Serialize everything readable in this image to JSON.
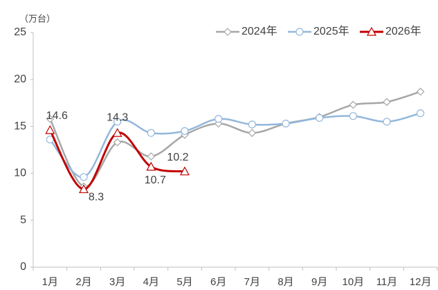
{
  "chart_data": {
    "type": "line",
    "unit_label": "（万台）",
    "categories": [
      "1月",
      "2月",
      "3月",
      "4月",
      "5月",
      "6月",
      "7月",
      "8月",
      "9月",
      "10月",
      "11月",
      "12月"
    ],
    "series": [
      {
        "name": "2024年",
        "color": "#a6a6a6",
        "marker": "diamond",
        "values": [
          15.8,
          8.6,
          13.3,
          11.8,
          14.1,
          15.3,
          14.3,
          15.3,
          16.0,
          17.3,
          17.6,
          18.7
        ]
      },
      {
        "name": "2025年",
        "color": "#92b7dc",
        "marker": "circle",
        "values": [
          13.6,
          9.6,
          15.5,
          14.3,
          14.5,
          15.8,
          15.2,
          15.3,
          15.9,
          16.1,
          15.5,
          16.4
        ]
      },
      {
        "name": "2026年",
        "color": "#c00000",
        "marker": "triangle",
        "values": [
          14.6,
          8.3,
          14.3,
          10.7,
          10.2,
          null,
          null,
          null,
          null,
          null,
          null,
          null
        ],
        "show_labels": true
      }
    ],
    "ylim": [
      0,
      25
    ],
    "yticks": [
      0,
      5,
      10,
      15,
      20,
      25
    ],
    "legend": "top-right",
    "grid": false
  }
}
